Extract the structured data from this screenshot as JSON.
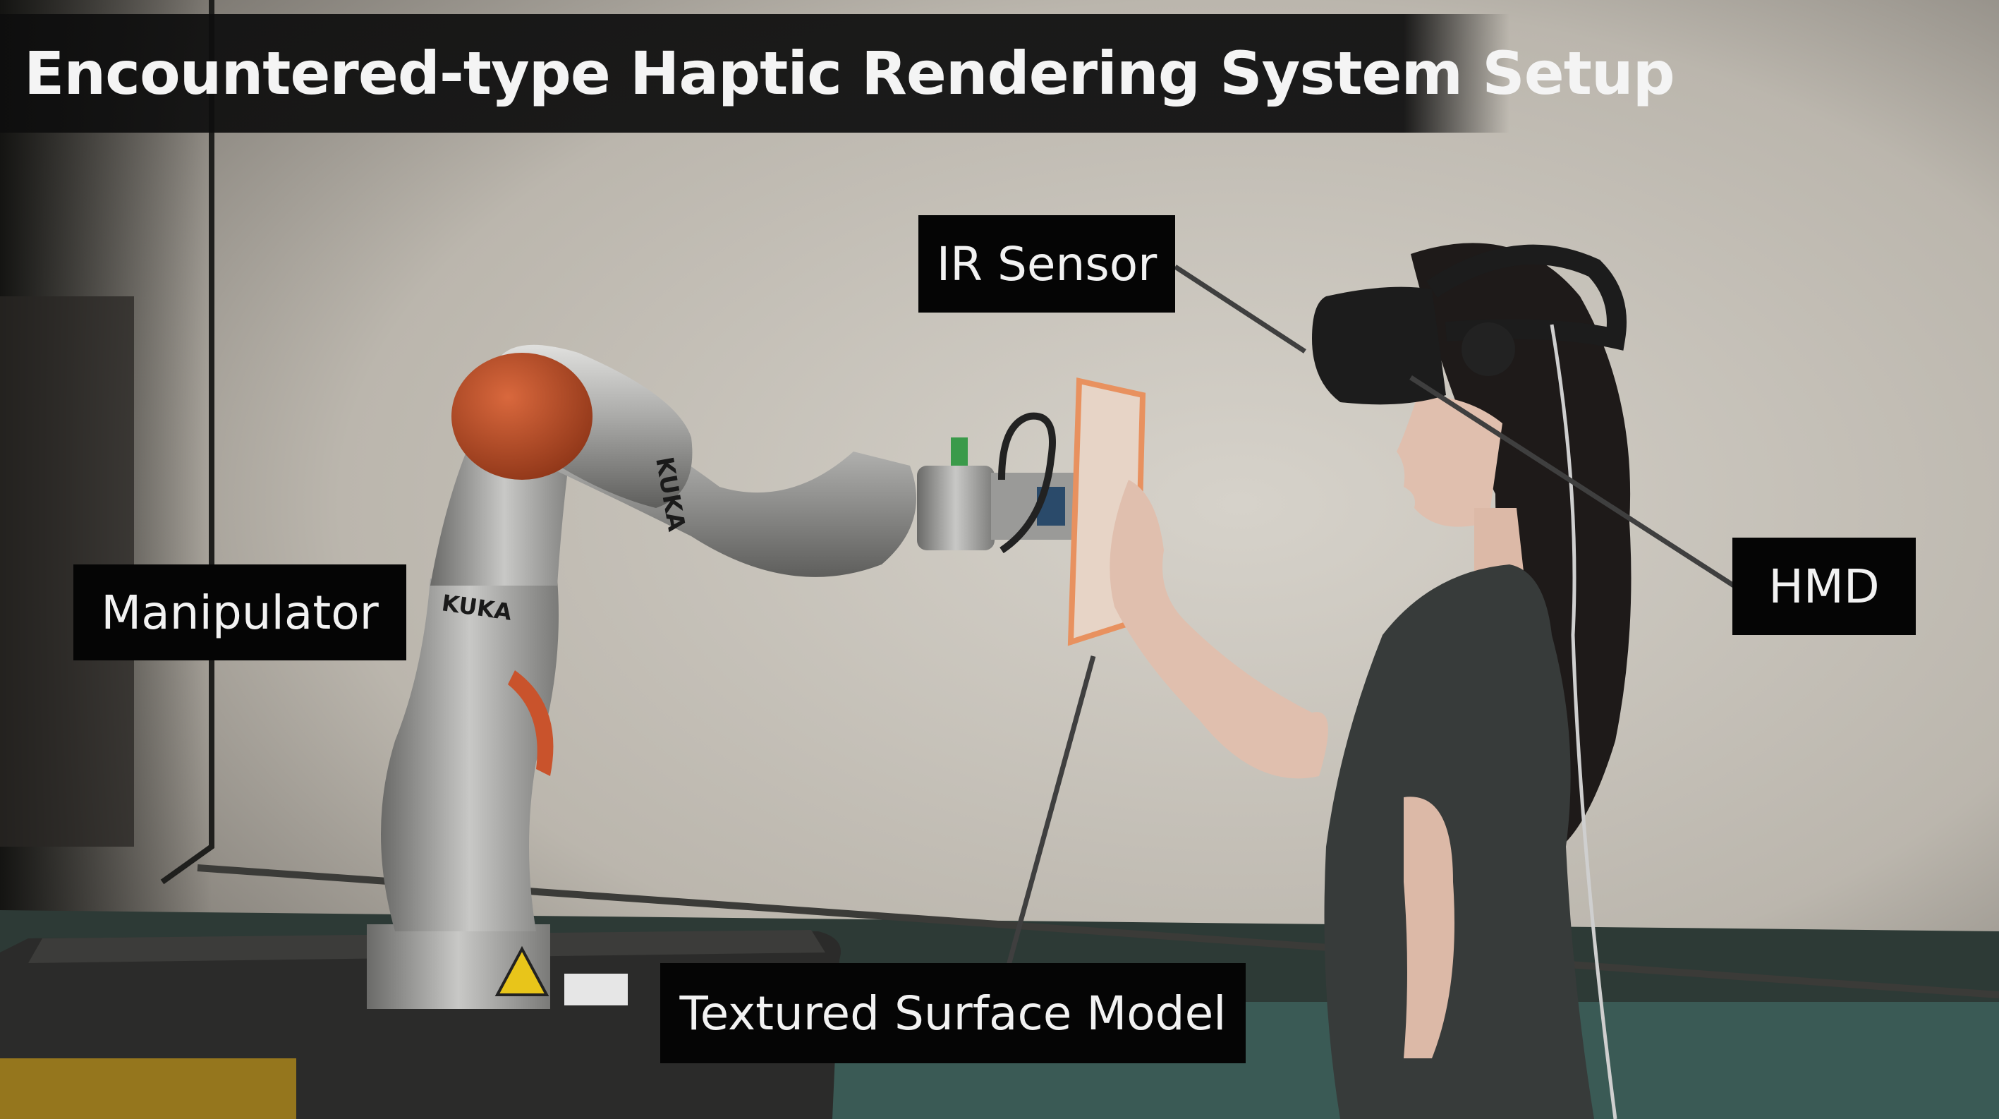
{
  "title": "Encountered-type Haptic Rendering System Setup",
  "labels": {
    "ir_sensor": "IR Sensor",
    "hmd": "HMD",
    "manipulator": "Manipulator",
    "textured_surface_model": "Textured Surface Model"
  },
  "robot_brand_marks": [
    "KUKA",
    "KUKA"
  ],
  "colors": {
    "wall": "#c9c4bb",
    "robot_silver": "#a6a6a4",
    "robot_orange": "#c9532c",
    "panel_orange": "#e8915f",
    "label_background": "#050505",
    "label_text": "#f2f2f2"
  }
}
